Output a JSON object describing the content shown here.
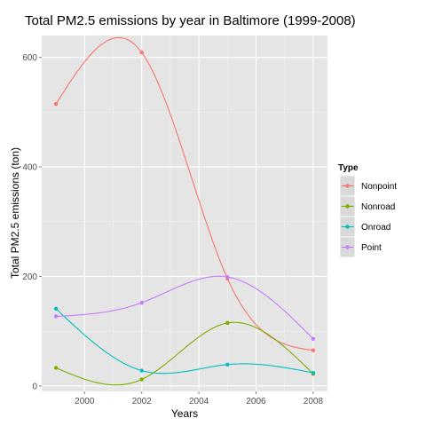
{
  "chart_data": {
    "type": "line",
    "title": "Total PM2.5 emissions by year in Baltimore (1999-2008)",
    "xlabel": "Years",
    "ylabel": "Total PM2.5 emissions (ton)",
    "x": [
      1999,
      2002,
      2005,
      2008
    ],
    "xlim": [
      1998.5,
      2008.5
    ],
    "ylim": [
      -10,
      640
    ],
    "x_ticks": [
      2000,
      2002,
      2004,
      2006,
      2008
    ],
    "y_ticks": [
      0,
      200,
      400,
      600
    ],
    "x_tick_labels": [
      "2000",
      "2002",
      "2004",
      "2006",
      "2008"
    ],
    "y_tick_labels": [
      "0",
      "200",
      "400",
      "600"
    ],
    "legend_title": "Type",
    "legend_position": "right",
    "grid": true,
    "series": [
      {
        "name": "Nonpoint",
        "values": [
          515,
          609,
          196,
          65
        ],
        "color": "#F8766D"
      },
      {
        "name": "Nonroad",
        "values": [
          33,
          12,
          115,
          22
        ],
        "color": "#7CAE00"
      },
      {
        "name": "Onroad",
        "values": [
          141,
          28,
          39,
          24
        ],
        "color": "#00BFC4"
      },
      {
        "name": "Point",
        "values": [
          127,
          152,
          199,
          86
        ],
        "color": "#C77CFF"
      }
    ]
  }
}
